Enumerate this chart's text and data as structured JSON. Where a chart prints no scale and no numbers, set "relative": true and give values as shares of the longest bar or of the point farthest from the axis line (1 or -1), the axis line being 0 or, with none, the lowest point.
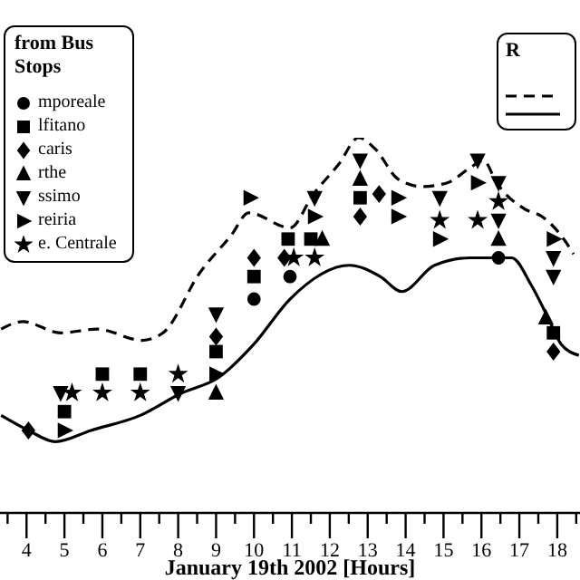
{
  "chart_data": {
    "type": "scatter",
    "relative": true,
    "xlabel": "January 19th 2002 [Hours]",
    "legend_title": "from Bus Stops",
    "legend": "top left",
    "annotations": [
      "R"
    ],
    "tick_labels": "x",
    "xlim": [
      3.3,
      18.6
    ],
    "xticks": [
      {
        "value": 3.5,
        "label": null
      },
      4,
      {
        "value": 4.5,
        "label": null
      },
      5,
      {
        "value": 5.5,
        "label": null
      },
      6,
      {
        "value": 6.5,
        "label": null
      },
      7,
      {
        "value": 7.5,
        "label": null
      },
      8,
      {
        "value": 8.5,
        "label": null
      },
      9,
      {
        "value": 9.5,
        "label": null
      },
      10,
      {
        "value": 10.5,
        "label": null
      },
      11,
      {
        "value": 11.5,
        "label": null
      },
      12,
      {
        "value": 12.5,
        "label": null
      },
      13,
      {
        "value": 13.5,
        "label": null
      },
      14,
      {
        "value": 14.5,
        "label": null
      },
      15,
      {
        "value": 15.5,
        "label": null
      },
      16,
      {
        "value": 16.5,
        "label": null
      },
      17,
      {
        "value": 17.5,
        "label": null
      },
      18,
      {
        "value": 18.5,
        "label": null
      }
    ],
    "series": [
      {
        "type": "line",
        "line_style": "dashed",
        "marker": "none",
        "color": "#000000",
        "x": [
          3.33,
          3.9,
          4.9,
          5.86,
          7.05,
          7.6,
          8.57,
          9.4,
          9.86,
          10.95,
          11.57,
          12.24,
          12.76,
          13.2,
          13.8,
          14.43,
          15.1,
          15.7,
          16.05,
          16.4,
          17.14,
          17.6,
          18.24,
          18.43
        ],
        "values": [
          0.49,
          0.51,
          0.48,
          0.49,
          0.46,
          0.48,
          0.64,
          0.74,
          0.8,
          0.76,
          0.85,
          0.93,
          1.0,
          0.97,
          0.89,
          0.87,
          0.88,
          0.92,
          0.94,
          0.88,
          0.81,
          0.79,
          0.72,
          0.69
        ]
      },
      {
        "type": "line",
        "line_style": "solid",
        "marker": "none",
        "color": "#000000",
        "x": [
          3.33,
          4.05,
          4.76,
          5.7,
          7.0,
          8.1,
          9.05,
          10.0,
          10.95,
          12.52,
          13.33,
          13.9,
          14.76,
          15.7,
          16.8,
          17.3,
          17.76,
          18.1,
          18.57
        ],
        "values": [
          0.26,
          0.22,
          0.19,
          0.22,
          0.26,
          0.32,
          0.36,
          0.45,
          0.57,
          0.66,
          0.63,
          0.59,
          0.66,
          0.68,
          0.68,
          0.61,
          0.52,
          0.45,
          0.42
        ]
      },
      {
        "name": "mporeale",
        "marker": "circle",
        "color": "#000000",
        "x": [
          10,
          10.95,
          16.45
        ],
        "values": [
          0.57,
          0.63,
          0.68
        ]
      },
      {
        "name": "lfitano",
        "marker": "square",
        "color": "#000000",
        "x": [
          5,
          6,
          7,
          9,
          10,
          10.9,
          11.5,
          12.8,
          17.9
        ],
        "values": [
          0.27,
          0.37,
          0.37,
          0.43,
          0.63,
          0.73,
          0.73,
          0.84,
          0.48
        ]
      },
      {
        "name": "caris",
        "marker": "diamond",
        "color": "#000000",
        "x": [
          4.05,
          9,
          10,
          10.8,
          12.8,
          13.3,
          17.9
        ],
        "values": [
          0.22,
          0.47,
          0.68,
          0.68,
          0.79,
          0.85,
          0.43
        ]
      },
      {
        "name": "rthe",
        "marker": "triangle",
        "color": "#000000",
        "x": [
          9,
          11.8,
          12.8,
          16.45,
          17.7
        ],
        "values": [
          0.32,
          0.73,
          0.89,
          0.73,
          0.52
        ]
      },
      {
        "name": "ssimo",
        "marker": "triangle-down",
        "color": "#000000",
        "x": [
          4.9,
          8,
          9,
          11.6,
          12.8,
          14.9,
          15.9,
          16.45,
          16.45,
          17.9,
          17.9
        ],
        "values": [
          0.32,
          0.32,
          0.53,
          0.84,
          0.94,
          0.84,
          0.94,
          0.88,
          0.78,
          0.68,
          0.63
        ]
      },
      {
        "name": "reiria",
        "marker": "triangle-right",
        "color": "#000000",
        "x": [
          5,
          9,
          9.9,
          11.6,
          13.8,
          13.8,
          14.9,
          15.9,
          17.9
        ],
        "values": [
          0.22,
          0.37,
          0.84,
          0.79,
          0.84,
          0.79,
          0.73,
          0.88,
          0.73
        ]
      },
      {
        "name": "e. Centrale",
        "marker": "star",
        "color": "#000000",
        "x": [
          5.2,
          6,
          7,
          8,
          11.05,
          11.6,
          14.9,
          15.9,
          16.45
        ],
        "values": [
          0.32,
          0.32,
          0.32,
          0.37,
          0.68,
          0.68,
          0.78,
          0.78,
          0.83
        ]
      }
    ]
  }
}
